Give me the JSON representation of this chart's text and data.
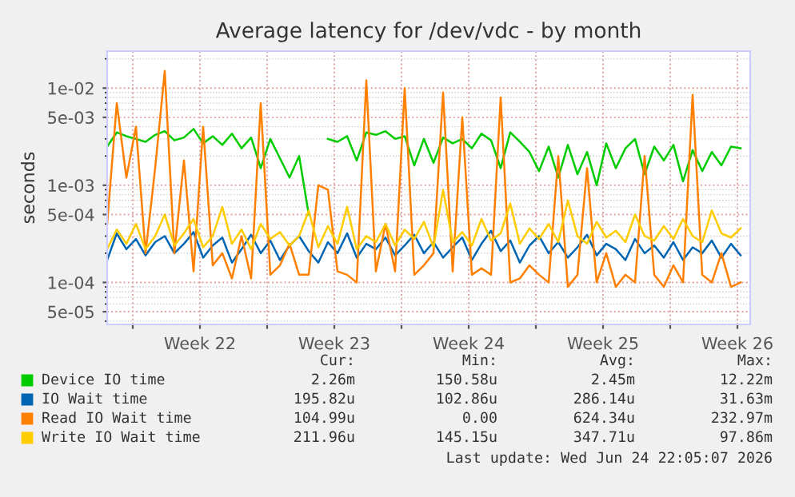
{
  "chart_data": {
    "type": "line",
    "title": "Average latency for /dev/vdc - by month",
    "ylabel": "seconds",
    "x": [
      "2026-05-23T16:00",
      "2026-05-24T04:00",
      "2026-05-24T16:00",
      "2026-05-25T04:00",
      "2026-05-25T16:00",
      "2026-05-26T04:00",
      "2026-05-26T16:00",
      "2026-05-27T04:00",
      "2026-05-27T16:00",
      "2026-05-28T04:00",
      "2026-05-28T16:00",
      "2026-05-29T04:00",
      "2026-05-29T16:00",
      "2026-05-30T04:00",
      "2026-05-30T16:00",
      "2026-05-31T04:00",
      "2026-05-31T16:00",
      "2026-06-01T04:00",
      "2026-06-01T16:00",
      "2026-06-02T04:00",
      "2026-06-02T16:00",
      "2026-06-03T04:00",
      "2026-06-03T16:00",
      "2026-06-04T04:00",
      "2026-06-04T16:00",
      "2026-06-05T04:00",
      "2026-06-05T16:00",
      "2026-06-06T04:00",
      "2026-06-06T16:00",
      "2026-06-07T04:00",
      "2026-06-07T16:00",
      "2026-06-08T04:00",
      "2026-06-08T16:00",
      "2026-06-09T04:00",
      "2026-06-09T16:00",
      "2026-06-10T04:00",
      "2026-06-10T16:00",
      "2026-06-11T04:00",
      "2026-06-11T16:00",
      "2026-06-12T04:00",
      "2026-06-12T16:00",
      "2026-06-13T04:00",
      "2026-06-13T16:00",
      "2026-06-14T04:00",
      "2026-06-14T16:00",
      "2026-06-15T04:00",
      "2026-06-15T16:00",
      "2026-06-16T04:00",
      "2026-06-16T16:00",
      "2026-06-17T04:00",
      "2026-06-17T16:00",
      "2026-06-18T04:00",
      "2026-06-18T16:00",
      "2026-06-19T04:00",
      "2026-06-19T16:00",
      "2026-06-20T04:00",
      "2026-06-20T16:00",
      "2026-06-21T04:00",
      "2026-06-21T16:00",
      "2026-06-22T04:00",
      "2026-06-22T16:00",
      "2026-06-23T04:00",
      "2026-06-23T16:00",
      "2026-06-24T04:00",
      "2026-06-24T16:00",
      "2026-06-25T04:00",
      "2026-06-25T16:00"
    ],
    "series": [
      {
        "name": "Device IO time",
        "color": "#00cc00",
        "values": [
          0.0025,
          0.0035,
          0.0032,
          0.003,
          0.0028,
          0.0033,
          0.0036,
          0.0029,
          0.0031,
          0.0038,
          0.0027,
          0.0032,
          0.0026,
          0.0034,
          0.0024,
          0.0031,
          0.0015,
          0.003,
          0.0019,
          0.0012,
          0.002,
          0.0005,
          null,
          0.003,
          0.0028,
          0.0032,
          0.0018,
          0.0035,
          0.0033,
          0.0036,
          0.003,
          0.0032,
          0.0016,
          0.003,
          0.0017,
          0.0031,
          0.0027,
          0.003,
          0.0024,
          0.0034,
          0.0029,
          0.0015,
          0.0035,
          0.0028,
          0.0022,
          0.0014,
          0.0025,
          0.0012,
          0.0026,
          0.0013,
          0.0022,
          0.001,
          0.0027,
          0.0015,
          0.0024,
          0.003,
          0.0013,
          0.0025,
          0.0018,
          0.0026,
          0.0011,
          0.0023,
          0.0014,
          0.0022,
          0.0016,
          0.0025,
          0.0024
        ]
      },
      {
        "name": "IO Wait time",
        "color": "#0066b3",
        "values": [
          0.00017,
          0.00032,
          0.00022,
          0.00028,
          0.00019,
          0.00026,
          0.0003,
          0.0002,
          0.00025,
          0.00033,
          0.00018,
          0.00024,
          0.00029,
          0.00016,
          0.00022,
          0.00031,
          0.0002,
          0.00027,
          0.00017,
          0.00024,
          0.0003,
          0.00021,
          0.00016,
          0.00026,
          0.0002,
          0.00032,
          0.00018,
          0.00025,
          0.00022,
          0.00029,
          0.00019,
          0.00024,
          0.00031,
          0.0002,
          0.00026,
          0.00018,
          0.00023,
          0.00029,
          0.00017,
          0.00025,
          0.00034,
          0.00021,
          0.00027,
          0.00016,
          0.00024,
          0.0003,
          0.0002,
          0.00026,
          0.00018,
          0.00023,
          0.00031,
          0.00019,
          0.00025,
          0.00022,
          0.00017,
          0.00028,
          0.0002,
          0.00024,
          0.00018,
          0.00026,
          0.00017,
          0.00023,
          0.0002,
          0.00027,
          0.00018,
          0.00025,
          0.00019
        ]
      },
      {
        "name": "Read IO Wait time",
        "color": "#ff8000",
        "values": [
          0.0004,
          0.007,
          0.0012,
          0.004,
          0.0002,
          0.0015,
          0.015,
          0.0002,
          0.0018,
          0.00013,
          0.004,
          0.00015,
          0.0002,
          0.00011,
          0.0003,
          0.00011,
          0.007,
          0.00012,
          0.00015,
          0.00025,
          0.00012,
          0.00012,
          0.001,
          0.0009,
          0.00013,
          0.00012,
          0.0001,
          0.012,
          0.00013,
          0.0004,
          0.00013,
          0.01,
          0.00012,
          0.00015,
          0.0002,
          0.009,
          0.00013,
          0.005,
          0.00012,
          0.00014,
          0.00012,
          0.008,
          0.0001,
          0.00011,
          0.00015,
          0.00012,
          0.0001,
          0.002,
          9e-05,
          0.00012,
          0.0015,
          0.0001,
          0.0002,
          9e-05,
          0.00012,
          0.0001,
          0.002,
          0.00012,
          9e-05,
          0.00015,
          0.0001,
          0.0085,
          0.00012,
          0.0001,
          0.0002,
          9e-05,
          0.0001
        ]
      },
      {
        "name": "Write IO Wait time",
        "color": "#ffcc00",
        "values": [
          0.00022,
          0.00035,
          0.00025,
          0.0004,
          0.00022,
          0.0003,
          0.0005,
          0.00024,
          0.00032,
          0.00045,
          0.00023,
          0.0003,
          0.0006,
          0.00025,
          0.00035,
          0.00022,
          0.0004,
          0.00028,
          0.00033,
          0.00024,
          0.0003,
          0.00055,
          0.00023,
          0.00038,
          0.00025,
          0.0006,
          0.00022,
          0.0003,
          0.00026,
          0.0004,
          0.00024,
          0.00035,
          0.00028,
          0.00042,
          0.00023,
          0.0009,
          0.00026,
          0.00033,
          0.00024,
          0.00045,
          0.00027,
          0.00032,
          0.00065,
          0.00025,
          0.00036,
          0.00028,
          0.0004,
          0.00026,
          0.0007,
          0.0003,
          0.00025,
          0.00042,
          0.00029,
          0.00034,
          0.00026,
          0.0005,
          0.0003,
          0.00027,
          0.00038,
          0.00028,
          0.00045,
          0.0003,
          0.00026,
          0.00055,
          0.00032,
          0.00029,
          0.00036
        ]
      }
    ],
    "xlim": [
      "2026-05-23T16:00",
      "2026-06-26T04:00"
    ],
    "xticks": [
      {
        "value": "2026-05-25T00:00",
        "label": null
      },
      {
        "value": "2026-05-28T12:00",
        "label": "Week 22"
      },
      {
        "value": "2026-06-01T00:00",
        "label": null
      },
      {
        "value": "2026-06-04T12:00",
        "label": "Week 23"
      },
      {
        "value": "2026-06-08T00:00",
        "label": null
      },
      {
        "value": "2026-06-11T12:00",
        "label": "Week 24"
      },
      {
        "value": "2026-06-15T00:00",
        "label": null
      },
      {
        "value": "2026-06-18T12:00",
        "label": "Week 25"
      },
      {
        "value": "2026-06-22T00:00",
        "label": null
      },
      {
        "value": "2026-06-25T12:00",
        "label": "Week 26"
      }
    ],
    "ylim": [
      3.7e-05,
      0.024
    ],
    "yticks": [
      {
        "value": 5e-05,
        "label": "5e-05"
      },
      {
        "value": 0.0001,
        "label": "1e-04"
      },
      {
        "value": 0.0005,
        "label": "5e-04"
      },
      {
        "value": 0.001,
        "label": "1e-03"
      },
      {
        "value": 0.005,
        "label": "5e-03"
      },
      {
        "value": 0.01,
        "label": "1e-02"
      }
    ],
    "log": "y",
    "grid": true,
    "legend": "bottom",
    "annotations": [
      "Cur:",
      "Min:",
      "Avg:",
      "Max:",
      "2.26m",
      "150.58u",
      "2.45m",
      "12.22m",
      "195.82u",
      "102.86u",
      "286.14u",
      "31.63m",
      "104.99u",
      "0.00",
      "624.34u",
      "232.97m",
      "211.96u",
      "145.15u",
      "347.71u",
      "97.86m",
      "Last update: Wed Jun 24 22:05:07 2026"
    ]
  }
}
